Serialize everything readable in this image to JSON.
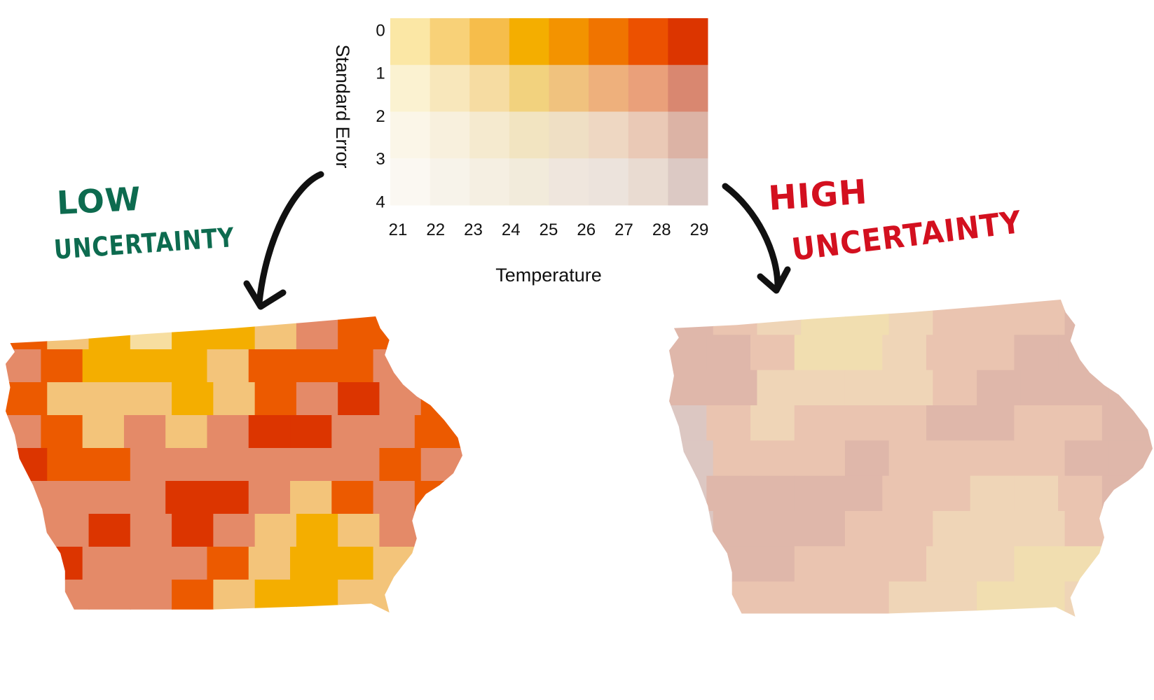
{
  "chart_data": {
    "type": "heatmap",
    "title": "",
    "xlabel": "Temperature",
    "ylabel": "Standard Error",
    "x_ticks": [
      "21",
      "22",
      "23",
      "24",
      "25",
      "26",
      "27",
      "28",
      "29"
    ],
    "y_ticks": [
      "0",
      "1",
      "2",
      "3",
      "4"
    ],
    "xlim": [
      21,
      29
    ],
    "ylim": [
      0,
      4
    ],
    "colors": [
      [
        "#fbe7a5",
        "#f8d178",
        "#f6bd4b",
        "#f4ae00",
        "#f39300",
        "#f07400",
        "#ec5100",
        "#dc3500"
      ],
      [
        "#fbf2d1",
        "#f8e7bb",
        "#f6dca2",
        "#f2d27e",
        "#f0c27e",
        "#eeb07c",
        "#eaa07a",
        "#d98770"
      ],
      [
        "#fbf6e8",
        "#f8f0dd",
        "#f5eacf",
        "#f2e4c1",
        "#efdfc4",
        "#eed7c2",
        "#eac9b6",
        "#dcb3a5"
      ],
      [
        "#fbf8f2",
        "#f7f3ea",
        "#f5efe2",
        "#f2ebdb",
        "#efe6dd",
        "#ece3dc",
        "#e9dbd1",
        "#dcc9c4"
      ]
    ],
    "annotations": [
      {
        "text": "LOW",
        "color": "#0d6b4f"
      },
      {
        "text": "UNCERTAINTY",
        "color": "#0d6b4f"
      },
      {
        "text": "HIGH",
        "color": "#d3101f"
      },
      {
        "text": "UNCERTAINTY",
        "color": "#d3101f"
      }
    ],
    "maps": {
      "low": {
        "rows": [
          [
            4,
            2,
            1,
            0,
            1,
            1,
            2,
            3,
            4,
            4,
            4
          ],
          [
            3,
            4,
            1,
            1,
            1,
            2,
            4,
            4,
            4,
            3,
            4
          ],
          [
            4,
            2,
            2,
            2,
            1,
            2,
            4,
            3,
            5,
            3,
            4
          ],
          [
            3,
            4,
            2,
            3,
            2,
            3,
            5,
            5,
            3,
            3,
            4
          ],
          [
            5,
            4,
            4,
            3,
            3,
            3,
            3,
            3,
            3,
            4,
            3
          ],
          [
            3,
            3,
            3,
            3,
            5,
            5,
            3,
            2,
            4,
            3,
            4
          ],
          [
            3,
            3,
            5,
            3,
            5,
            3,
            2,
            1,
            2,
            3,
            4
          ],
          [
            4,
            5,
            3,
            3,
            3,
            4,
            2,
            1,
            1,
            2,
            2
          ],
          [
            2,
            3,
            3,
            3,
            4,
            2,
            1,
            1,
            2,
            2,
            3
          ]
        ]
      },
      "high": {
        "rows": [
          [
            4,
            3,
            2,
            1,
            1,
            2,
            3,
            3,
            3,
            4,
            4
          ],
          [
            4,
            4,
            3,
            1,
            1,
            2,
            3,
            3,
            4,
            4,
            4
          ],
          [
            4,
            4,
            2,
            2,
            2,
            2,
            3,
            4,
            4,
            4,
            4
          ],
          [
            5,
            3,
            2,
            3,
            3,
            3,
            4,
            4,
            3,
            3,
            4
          ],
          [
            5,
            3,
            3,
            3,
            4,
            3,
            3,
            3,
            3,
            4,
            4
          ],
          [
            5,
            4,
            4,
            4,
            4,
            3,
            3,
            2,
            2,
            3,
            4
          ],
          [
            5,
            4,
            4,
            4,
            3,
            3,
            2,
            2,
            2,
            3,
            3
          ],
          [
            4,
            4,
            4,
            3,
            3,
            3,
            2,
            2,
            1,
            1,
            3
          ],
          [
            3,
            3,
            3,
            3,
            3,
            2,
            2,
            1,
            1,
            2,
            2
          ]
        ]
      }
    }
  }
}
